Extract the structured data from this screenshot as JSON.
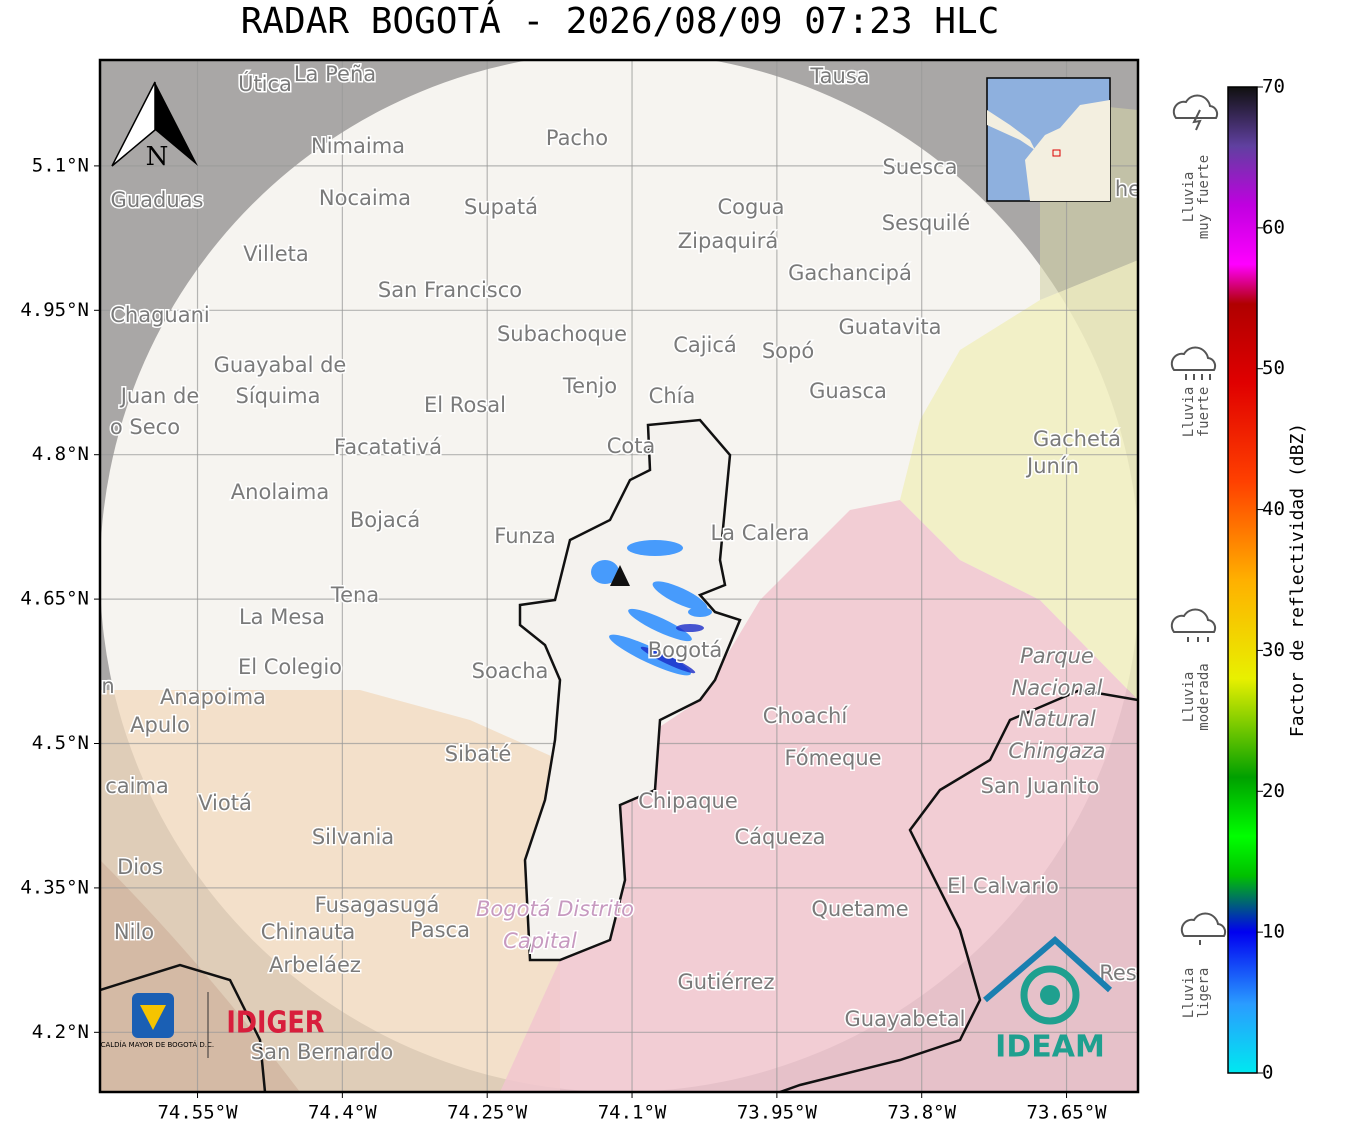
{
  "title": "RADAR BOGOTÁ - 2026/08/09 07:23 HLC",
  "map": {
    "xlim": [
      -74.651,
      -73.576
    ],
    "ylim": [
      4.138,
      5.21
    ],
    "lon_ticks": [
      {
        "value": -74.55,
        "label": "74.55°W"
      },
      {
        "value": -74.4,
        "label": "74.4°W"
      },
      {
        "value": -74.25,
        "label": "74.25°W"
      },
      {
        "value": -74.1,
        "label": "74.1°W"
      },
      {
        "value": -73.95,
        "label": "73.95°W"
      },
      {
        "value": -73.8,
        "label": "73.8°W"
      },
      {
        "value": -73.65,
        "label": "73.65°W"
      }
    ],
    "lat_ticks": [
      {
        "value": 5.1,
        "label": "5.1°N"
      },
      {
        "value": 4.95,
        "label": "4.95°N"
      },
      {
        "value": 4.8,
        "label": "4.8°N"
      },
      {
        "value": 4.65,
        "label": "4.65°N"
      },
      {
        "value": 4.5,
        "label": "4.5°N"
      },
      {
        "value": 4.35,
        "label": "4.35°N"
      },
      {
        "value": 4.2,
        "label": "4.2°N"
      }
    ],
    "north": "N",
    "places": [
      "Útica",
      "La Peña",
      "Tausa",
      "Pacho",
      "Nimaima",
      "Guaduas",
      "Nocaima",
      "Supatá",
      "Cogua",
      "Suesca",
      "Sesquilé",
      "Zipaquirá",
      "Villeta",
      "Gachancipá",
      "San Francisco",
      "Chaguani",
      "Guatavita",
      "Subachoque",
      "Cajicá",
      "Sopó",
      "Guayabal de",
      "Síquima",
      "Juan de",
      "o Seco",
      "Tenjo",
      "Chía",
      "Guasca",
      "El Rosal",
      "Facatativá",
      "Cota",
      "Gachetá",
      "Junín",
      "Anolaima",
      "Bojacá",
      "Funza",
      "La Calera",
      "Tena",
      "La Mesa",
      "El Colegio",
      "Soacha",
      "Bogotá",
      "Parque",
      "Nacional",
      "Natural",
      "Chingaza",
      "Anapoima",
      "Apulo",
      "Choachí",
      "Sibaté",
      "Fómeque",
      "San Juanito",
      "caima",
      "Viotá",
      "Chipaque",
      "Silvania",
      "Cáqueza",
      "Dios",
      "El Calvario",
      "Fusagasugá",
      "Bogotá Distrito",
      "Capital",
      "Quetame",
      "Nilo",
      "Chinauta",
      "Pasca",
      "Arbeláez",
      "Gutiérrez",
      "Guayabetal",
      "San Bernardo",
      "Res",
      "n",
      "he"
    ]
  },
  "logos": {
    "alcaldia": "ALCALDÍA MAYOR DE BOGOTÁ D.C.",
    "idiger": "IDIGER",
    "ideam": "IDEAM"
  },
  "colorbar": {
    "label": "Factor de reflectividad (dBZ)",
    "lim": [
      0,
      70
    ],
    "ticks": [
      0,
      10,
      20,
      30,
      40,
      50,
      60,
      70
    ],
    "categories": [
      {
        "lines": [
          "Lluvia",
          "muy fuerte"
        ]
      },
      {
        "lines": [
          "Lluvia",
          "fuerte"
        ]
      },
      {
        "lines": [
          "Lluvia",
          "moderada"
        ]
      },
      {
        "lines": [
          "Lluvia",
          "ligera"
        ]
      }
    ]
  }
}
